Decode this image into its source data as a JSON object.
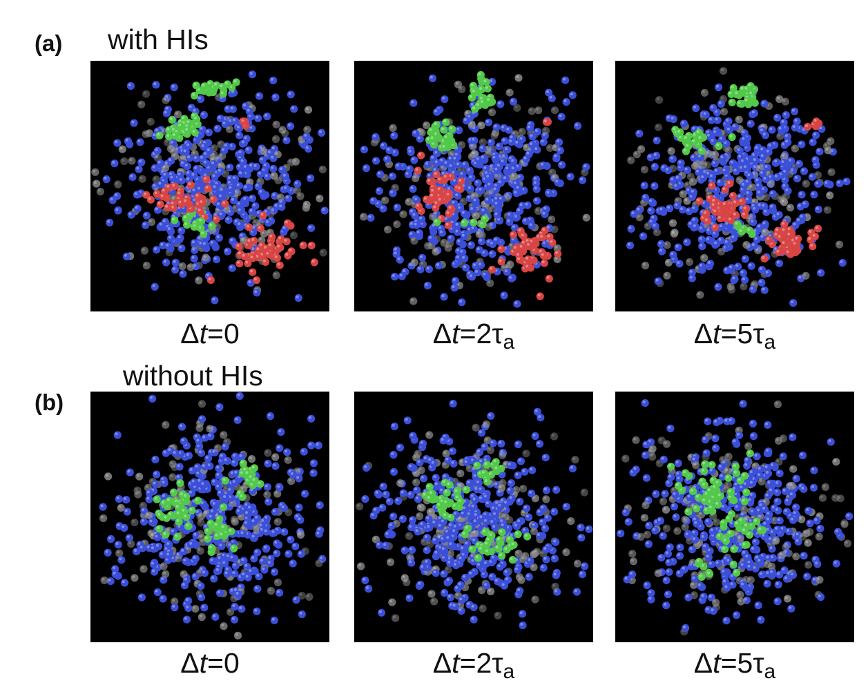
{
  "figure": {
    "rows": [
      {
        "label": "(a)",
        "title": "with HIs",
        "panels": [
          {
            "delta": "Δ",
            "var": "t",
            "value": "=0",
            "tau": "",
            "sub": ""
          },
          {
            "delta": "Δ",
            "var": "t",
            "value": "=2",
            "tau": "τ",
            "sub": "a"
          },
          {
            "delta": "Δ",
            "var": "t",
            "value": "=5",
            "tau": "τ",
            "sub": "a"
          }
        ]
      },
      {
        "label": "(b)",
        "title": "without HIs",
        "panels": [
          {
            "delta": "Δ",
            "var": "t",
            "value": "=0",
            "tau": "",
            "sub": ""
          },
          {
            "delta": "Δ",
            "var": "t",
            "value": "=2",
            "tau": "τ",
            "sub": "a"
          },
          {
            "delta": "Δ",
            "var": "t",
            "value": "=5",
            "tau": "τ",
            "sub": "a"
          }
        ]
      }
    ],
    "particle_colors": {
      "blue": "#3b4fd8",
      "green": "#52c94a",
      "red": "#d84545",
      "gray": "#8a8a8a"
    }
  }
}
